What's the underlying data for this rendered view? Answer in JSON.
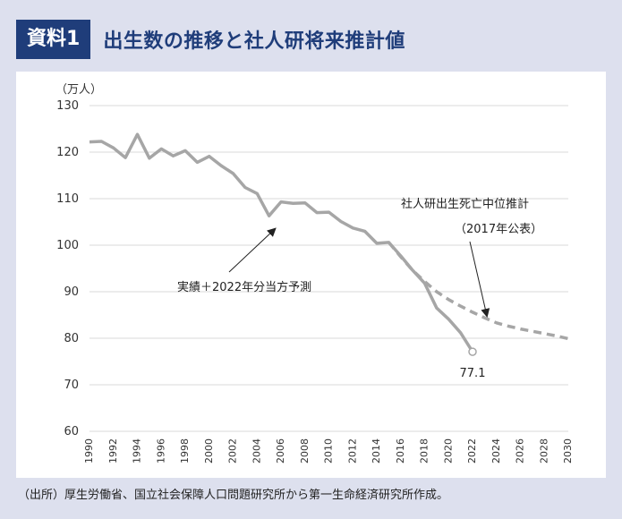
{
  "header": {
    "badge": "資料1",
    "title": "出生数の推移と社人研将来推計値"
  },
  "source_note": "（出所）厚生労働省、国立社会保障人口問題研究所から第一生命経済研究所作成。",
  "colors": {
    "header": "#1f3d7a",
    "background": "#dde0ee",
    "actual": "#a6a6a6",
    "projection": "#a6a6a6"
  },
  "chart_data": {
    "type": "line",
    "title": "出生数の推移と社人研将来推計値",
    "ylabel": "（万人）",
    "xlabel": "",
    "ylim": [
      60,
      130
    ],
    "xlim": [
      1990,
      2030
    ],
    "yticks": [
      60,
      70,
      80,
      90,
      100,
      110,
      120,
      130
    ],
    "xticks": [
      1990,
      1992,
      1994,
      1996,
      1998,
      2000,
      2002,
      2004,
      2006,
      2008,
      2010,
      2012,
      2014,
      2016,
      2018,
      2020,
      2022,
      2024,
      2026,
      2028,
      2030
    ],
    "series": [
      {
        "name": "実績＋2022年分当方予測",
        "style": "solid",
        "x": [
          1990,
          1991,
          1992,
          1993,
          1994,
          1995,
          1996,
          1997,
          1998,
          1999,
          2000,
          2001,
          2002,
          2003,
          2004,
          2005,
          2006,
          2007,
          2008,
          2009,
          2010,
          2011,
          2012,
          2013,
          2014,
          2015,
          2016,
          2017,
          2018,
          2019,
          2020,
          2021,
          2022
        ],
        "values": [
          122.2,
          122.3,
          120.9,
          118.8,
          123.8,
          118.7,
          120.7,
          119.2,
          120.3,
          117.8,
          119.1,
          117.1,
          115.4,
          112.4,
          111.1,
          106.3,
          109.3,
          109.0,
          109.1,
          107.0,
          107.1,
          105.1,
          103.7,
          103.0,
          100.4,
          100.6,
          97.7,
          94.6,
          91.8,
          86.5,
          84.1,
          81.2,
          77.1
        ]
      },
      {
        "name": "社人研出生死亡中位推計（2017年公表）",
        "style": "dashed",
        "x": [
          2015,
          2016,
          2017,
          2018,
          2019,
          2020,
          2021,
          2022,
          2023,
          2024,
          2025,
          2026,
          2027,
          2028,
          2029,
          2030
        ],
        "values": [
          100.6,
          97.5,
          94.6,
          92.2,
          90.0,
          88.3,
          86.9,
          85.6,
          84.4,
          83.3,
          82.6,
          82.0,
          81.5,
          81.0,
          80.5,
          79.9
        ]
      }
    ],
    "annotations": {
      "actual_label": "実績＋2022年分当方予測",
      "projection_label_line1": "社人研出生死亡中位推計",
      "projection_label_line2": "（2017年公表）",
      "end_value_label": "77.1"
    }
  }
}
